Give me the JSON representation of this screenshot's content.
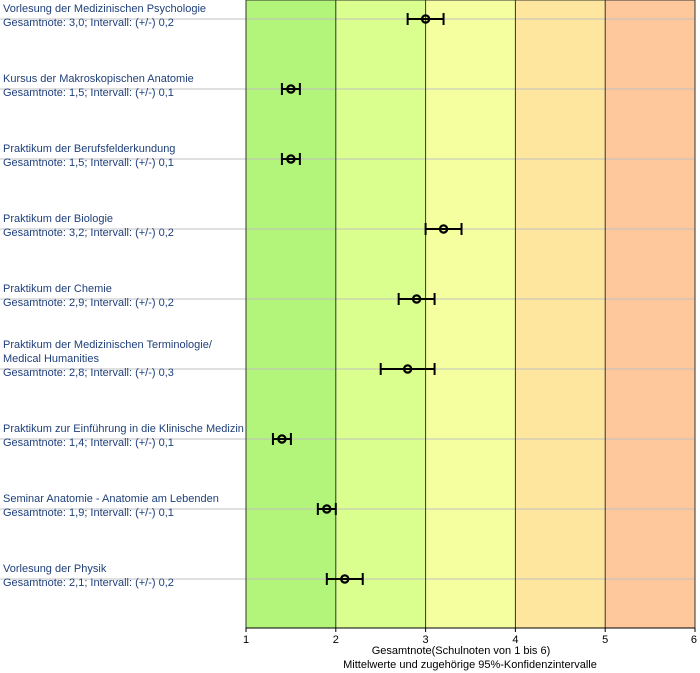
{
  "chart_data": {
    "type": "errorbar",
    "xlabel": "Gesamtnote(Schulnoten von 1 bis 6)",
    "subtitle": "Mittelwerte und zugehörige 95%-Konfidenzintervalle",
    "xlim": [
      1,
      6
    ],
    "xticks": [
      "1",
      "2",
      "3",
      "4",
      "5",
      "6"
    ],
    "bands": [
      {
        "from": 1,
        "to": 2,
        "color": "#b3f57a"
      },
      {
        "from": 2,
        "to": 3,
        "color": "#daff8f"
      },
      {
        "from": 3,
        "to": 4,
        "color": "#f5ffa0"
      },
      {
        "from": 4,
        "to": 5,
        "color": "#ffe69e"
      },
      {
        "from": 5,
        "to": 6,
        "color": "#ffc89c"
      }
    ],
    "items": [
      {
        "name": "Vorlesung der Medizinischen Psychologie",
        "line1": "Vorlesung der Medizinischen Psychologie",
        "line2": "",
        "summary": "Gesamtnote: 3,0;  Intervall: (+/-) 0,2",
        "mean": 3.0,
        "ci": 0.2
      },
      {
        "name": "Kursus der Makroskopischen Anatomie",
        "line1": "Kursus der Makroskopischen Anatomie",
        "line2": "",
        "summary": "Gesamtnote: 1,5;  Intervall: (+/-) 0,1",
        "mean": 1.5,
        "ci": 0.1
      },
      {
        "name": "Praktikum der Berufsfelderkundung",
        "line1": "Praktikum der Berufsfelderkundung",
        "line2": "",
        "summary": "Gesamtnote: 1,5;  Intervall: (+/-) 0,1",
        "mean": 1.5,
        "ci": 0.1
      },
      {
        "name": "Praktikum der Biologie",
        "line1": "Praktikum der Biologie",
        "line2": "",
        "summary": "Gesamtnote: 3,2;  Intervall: (+/-) 0,2",
        "mean": 3.2,
        "ci": 0.2
      },
      {
        "name": "Praktikum der Chemie",
        "line1": "Praktikum der Chemie",
        "line2": "",
        "summary": "Gesamtnote: 2,9;  Intervall: (+/-) 0,2",
        "mean": 2.9,
        "ci": 0.2
      },
      {
        "name": "Praktikum der Medizinischen Terminologie/ Medical Humanities",
        "line1": "Praktikum der Medizinischen Terminologie/",
        "line2": "Medical Humanities",
        "summary": "Gesamtnote: 2,8;  Intervall: (+/-) 0,3",
        "mean": 2.8,
        "ci": 0.3
      },
      {
        "name": "Praktikum zur Einführung in die Klinische Medizin",
        "line1": "Praktikum zur Einführung in die Klinische Medizin",
        "line2": "",
        "summary": "Gesamtnote: 1,4;  Intervall: (+/-) 0,1",
        "mean": 1.4,
        "ci": 0.1
      },
      {
        "name": "Seminar Anatomie - Anatomie am Lebenden",
        "line1": "Seminar Anatomie - Anatomie am Lebenden",
        "line2": "",
        "summary": "Gesamtnote: 1,9;  Intervall: (+/-) 0,1",
        "mean": 1.9,
        "ci": 0.1
      },
      {
        "name": "Vorlesung der Physik",
        "line1": "Vorlesung der Physik",
        "line2": "",
        "summary": "Gesamtnote: 2,1;  Intervall: (+/-) 0,2",
        "mean": 2.1,
        "ci": 0.2
      }
    ]
  }
}
